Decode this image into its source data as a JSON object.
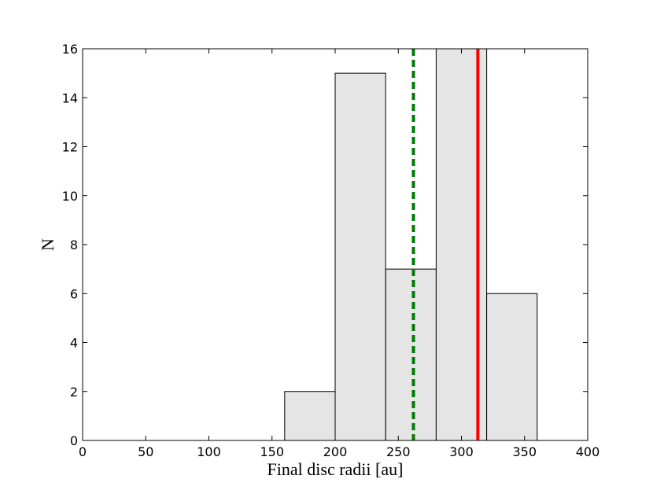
{
  "chart_data": {
    "type": "histogram",
    "xlabel": "Final disc radii [au]",
    "ylabel": "N",
    "bins": [
      160,
      200,
      240,
      280,
      320,
      360
    ],
    "counts": [
      2,
      15,
      7,
      16,
      6
    ],
    "color": "#e5e5e5",
    "edgecolor": "#000000",
    "vlines": [
      {
        "x": 262,
        "color": "#007a00",
        "style": "dashed"
      },
      {
        "x": 313,
        "color": "#ff0000",
        "style": "solid"
      }
    ],
    "xlim": [
      0,
      400
    ],
    "xticks": [
      0,
      50,
      100,
      150,
      200,
      250,
      300,
      350,
      400
    ],
    "ylim": [
      0,
      16
    ],
    "yticks": [
      0,
      2,
      4,
      6,
      8,
      10,
      12,
      14,
      16
    ]
  }
}
